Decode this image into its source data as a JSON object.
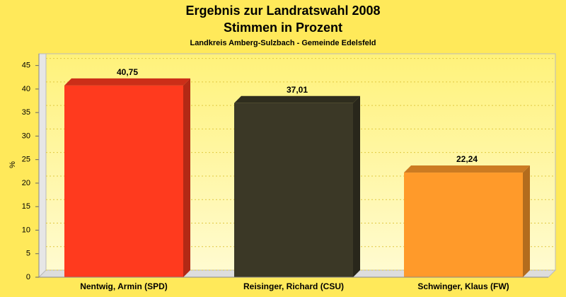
{
  "chart_data": {
    "type": "bar3d",
    "title": "Ergebnis zur Landratswahl 2008",
    "subtitle": "Stimmen in Prozent",
    "caption": "Landkreis Amberg-Sulzbach - Gemeinde Edelsfeld",
    "y_label": "%",
    "categories": [
      "Nentwig, Armin (SPD)",
      "Reisinger, Richard (CSU)",
      "Schwinger, Klaus (FW)"
    ],
    "values": [
      40.75,
      37.01,
      22.24
    ],
    "value_labels": [
      "40,75",
      "37,01",
      "22,24"
    ],
    "colors": [
      "#ff3a1e",
      "#3b3826",
      "#ff9a2a"
    ],
    "ylim": [
      0,
      47.5
    ],
    "yticks": [
      0,
      5,
      10,
      15,
      20,
      25,
      30,
      35,
      40,
      45
    ],
    "grid": true
  }
}
